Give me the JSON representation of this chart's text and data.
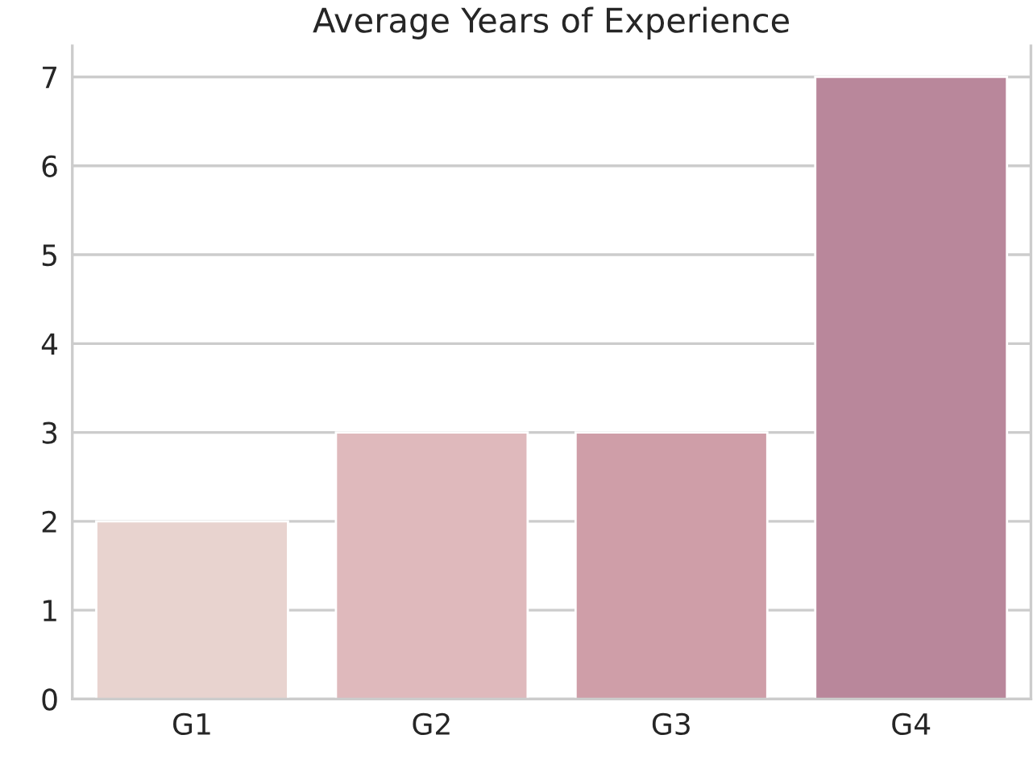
{
  "chart_data": {
    "type": "bar",
    "title": "Average Years of Experience",
    "categories": [
      "G1",
      "G2",
      "G3",
      "G4"
    ],
    "values": [
      2,
      3,
      3,
      7
    ],
    "colors": [
      "#e8d3cf",
      "#dfb9bc",
      "#cf9ea8",
      "#b9879b"
    ],
    "ylim": [
      0,
      7.35
    ],
    "yticks": [
      0,
      1,
      2,
      3,
      4,
      5,
      6,
      7
    ],
    "grid": "y"
  }
}
